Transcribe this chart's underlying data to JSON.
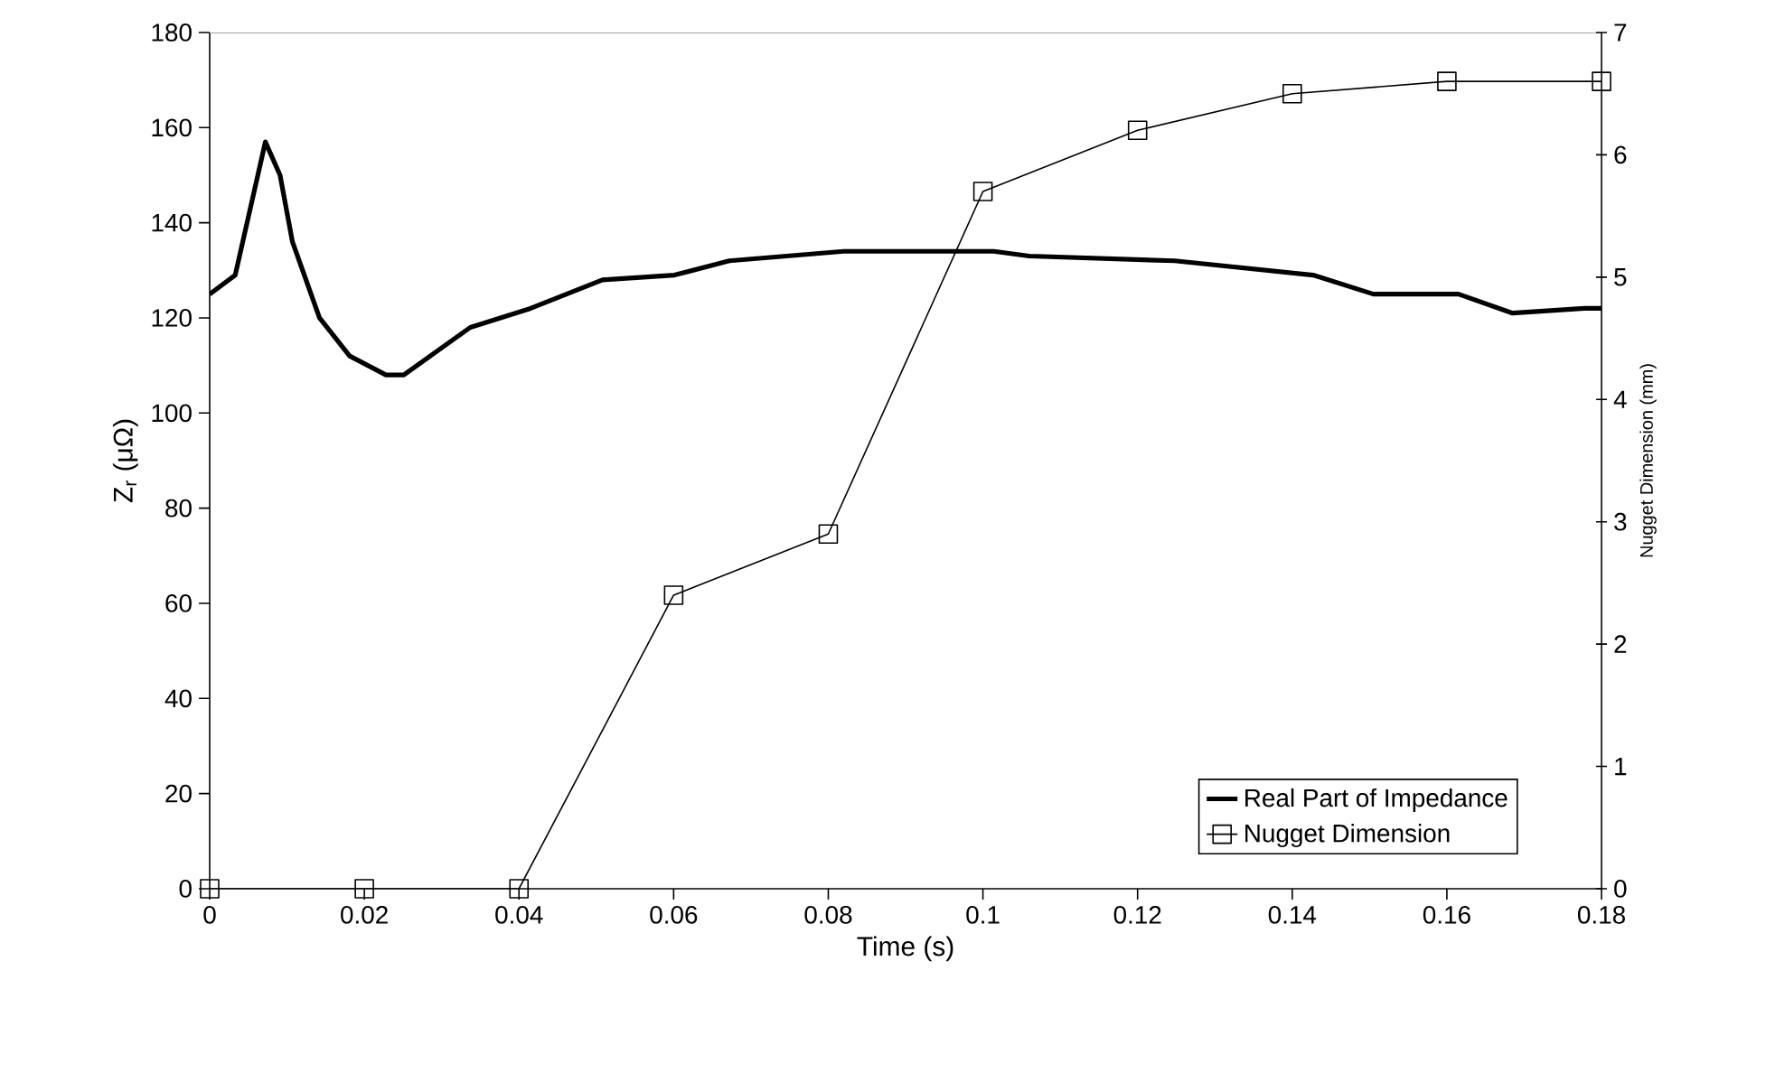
{
  "chart_data": {
    "type": "line",
    "xlabel": "Time (s)",
    "ylabel": "Z$_{r}$ (μΩ)",
    "y2label": "Nugget Dimension (mm)",
    "xlim": [
      0,
      0.18
    ],
    "xticks": [
      0,
      0.02,
      0.04,
      0.06,
      0.08,
      0.1,
      0.12,
      0.14,
      0.16,
      0.18
    ],
    "ylim": [
      0,
      180
    ],
    "yticks": [
      0,
      20,
      40,
      60,
      80,
      100,
      120,
      140,
      160,
      180
    ],
    "y2lim": [
      0,
      7
    ],
    "y2ticks": [
      0,
      1,
      2,
      3,
      4,
      5,
      6,
      7
    ],
    "legend": "bottom right",
    "grid": false,
    "series": [
      {
        "name": "Real Part of Impedance",
        "color": "#000000",
        "marker": "none",
        "axis": "y",
        "x": [
          0,
          0.0033,
          0.0072,
          0.0091,
          0.0107,
          0.0142,
          0.0181,
          0.0228,
          0.0251,
          0.0337,
          0.0415,
          0.0508,
          0.0601,
          0.0672,
          0.082,
          0.1014,
          0.106,
          0.1248,
          0.1427,
          0.1505,
          0.1615,
          0.1685,
          0.1778,
          0.18
        ],
        "values": [
          125,
          129,
          157,
          150,
          136,
          120,
          112,
          108,
          108,
          118,
          122,
          128,
          129,
          132,
          134,
          134,
          133,
          132,
          129,
          125,
          125,
          121,
          122,
          122
        ]
      },
      {
        "name": "Nugget Dimension",
        "color": "#000000",
        "marker": "square",
        "axis": "y2",
        "x": [
          0,
          0.02,
          0.04,
          0.06,
          0.08,
          0.1,
          0.12,
          0.14,
          0.16,
          0.18
        ],
        "values": [
          0,
          0,
          0,
          2.4,
          2.9,
          5.7,
          6.2,
          6.5,
          6.6,
          6.6
        ]
      }
    ]
  }
}
